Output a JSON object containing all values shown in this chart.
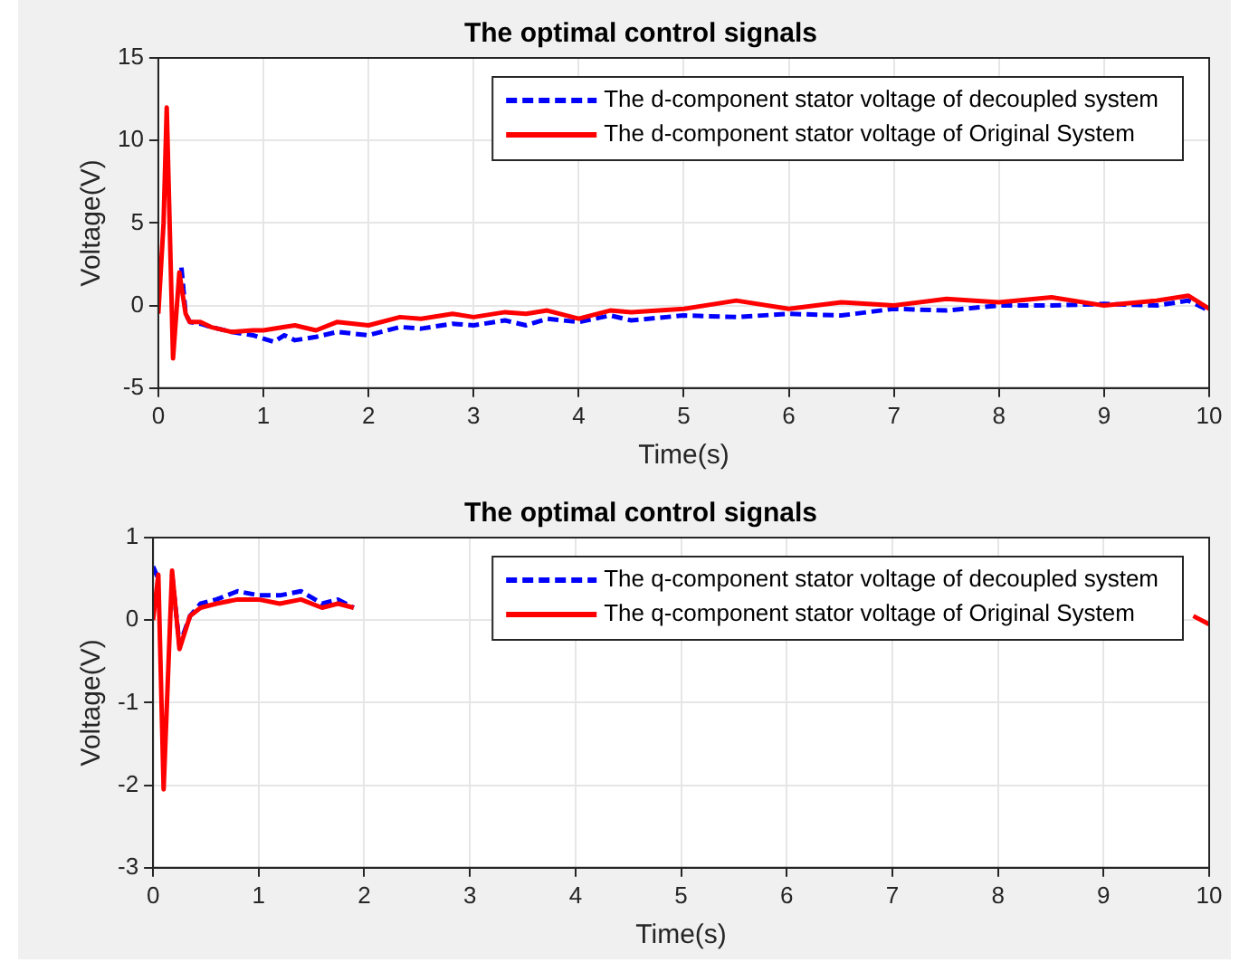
{
  "chart_data": [
    {
      "type": "line",
      "title": "The optimal control signals",
      "xlabel": "Time(s)",
      "ylabel": "Voltage(V)",
      "xlim": [
        0,
        10
      ],
      "xticks": [
        0,
        1,
        2,
        3,
        4,
        5,
        6,
        7,
        8,
        9,
        10
      ],
      "ylim": [
        -5,
        15
      ],
      "yticks": [
        -5,
        0,
        5,
        10,
        15
      ],
      "grid": true,
      "legend": "top right",
      "marker": "none",
      "series": [
        {
          "name": "The d-component stator voltage of decoupled system",
          "color": "#0000ff",
          "line_style": "dashed",
          "x": [
            0.22,
            0.26,
            0.3,
            0.4,
            0.5,
            0.7,
            0.9,
            1.1,
            1.2,
            1.3,
            1.5,
            1.7,
            2,
            2.3,
            2.5,
            2.8,
            3,
            3.3,
            3.5,
            3.7,
            4,
            4.3,
            4.5,
            5,
            5.5,
            6,
            6.5,
            7,
            7.5,
            8,
            8.5,
            9,
            9.5,
            9.8,
            10
          ],
          "values": [
            2.3,
            -0.5,
            -1,
            -1.1,
            -1.3,
            -1.6,
            -1.8,
            -2.2,
            -1.8,
            -2.1,
            -1.9,
            -1.6,
            -1.8,
            -1.3,
            -1.4,
            -1.1,
            -1.2,
            -0.9,
            -1.2,
            -0.8,
            -1,
            -0.6,
            -0.9,
            -0.6,
            -0.7,
            -0.5,
            -0.6,
            -0.2,
            -0.3,
            0,
            0,
            0.1,
            0,
            0.3,
            -0.3
          ]
        },
        {
          "name": "The d-component stator voltage of Original System",
          "color": "#ff0000",
          "line_style": "solid",
          "x": [
            0,
            0.05,
            0.08,
            0.14,
            0.2,
            0.26,
            0.3,
            0.4,
            0.5,
            0.7,
            0.9,
            1,
            1.2,
            1.3,
            1.5,
            1.7,
            2,
            2.3,
            2.5,
            2.8,
            3,
            3.3,
            3.5,
            3.7,
            4,
            4.3,
            4.5,
            5,
            5.5,
            6,
            6.5,
            7,
            7.5,
            8,
            8.5,
            9,
            9.5,
            9.8,
            10
          ],
          "values": [
            -0.5,
            5,
            12,
            -3.2,
            2,
            -0.5,
            -1,
            -1,
            -1.3,
            -1.6,
            -1.5,
            -1.5,
            -1.3,
            -1.2,
            -1.5,
            -1,
            -1.2,
            -0.7,
            -0.8,
            -0.5,
            -0.7,
            -0.4,
            -0.5,
            -0.3,
            -0.8,
            -0.3,
            -0.4,
            -0.2,
            0.3,
            -0.2,
            0.2,
            0,
            0.4,
            0.2,
            0.5,
            0,
            0.3,
            0.6,
            -0.2
          ]
        }
      ]
    },
    {
      "type": "line",
      "title": "The optimal control signals",
      "xlabel": "Time(s)",
      "ylabel": "Voltage(V)",
      "xlim": [
        0,
        10
      ],
      "xticks": [
        0,
        1,
        2,
        3,
        4,
        5,
        6,
        7,
        8,
        9,
        10
      ],
      "ylim": [
        -3,
        1
      ],
      "yticks": [
        -3,
        -2,
        -1,
        0,
        1
      ],
      "grid": true,
      "legend": "top right",
      "marker": "none",
      "series": [
        {
          "name": "The q-component stator voltage of decoupled system",
          "color": "#0000ff",
          "line_style": "dashed",
          "x": [
            0,
            0.05,
            0.1,
            0.18,
            0.25,
            0.35,
            0.45,
            0.6,
            0.8,
            1,
            1.2,
            1.4,
            1.6,
            1.75,
            1.9
          ],
          "values": [
            0.65,
            0.5,
            null,
            0.55,
            -0.3,
            0.05,
            0.2,
            0.25,
            0.35,
            0.3,
            0.3,
            0.35,
            0.2,
            0.25,
            0.15
          ]
        },
        {
          "name": "The q-component stator voltage of Original System",
          "color": "#ff0000",
          "line_style": "solid",
          "x": [
            0,
            0.05,
            0.1,
            0.18,
            0.25,
            0.35,
            0.45,
            0.6,
            0.8,
            1,
            1.2,
            1.4,
            1.6,
            1.75,
            1.9,
            2,
            9.7,
            9.85,
            10
          ],
          "values": [
            0,
            0.55,
            -2.05,
            0.6,
            -0.35,
            0.05,
            0.15,
            0.2,
            0.25,
            0.25,
            0.2,
            0.25,
            0.15,
            0.2,
            0.15,
            null,
            null,
            0.05,
            -0.05
          ]
        }
      ]
    }
  ]
}
